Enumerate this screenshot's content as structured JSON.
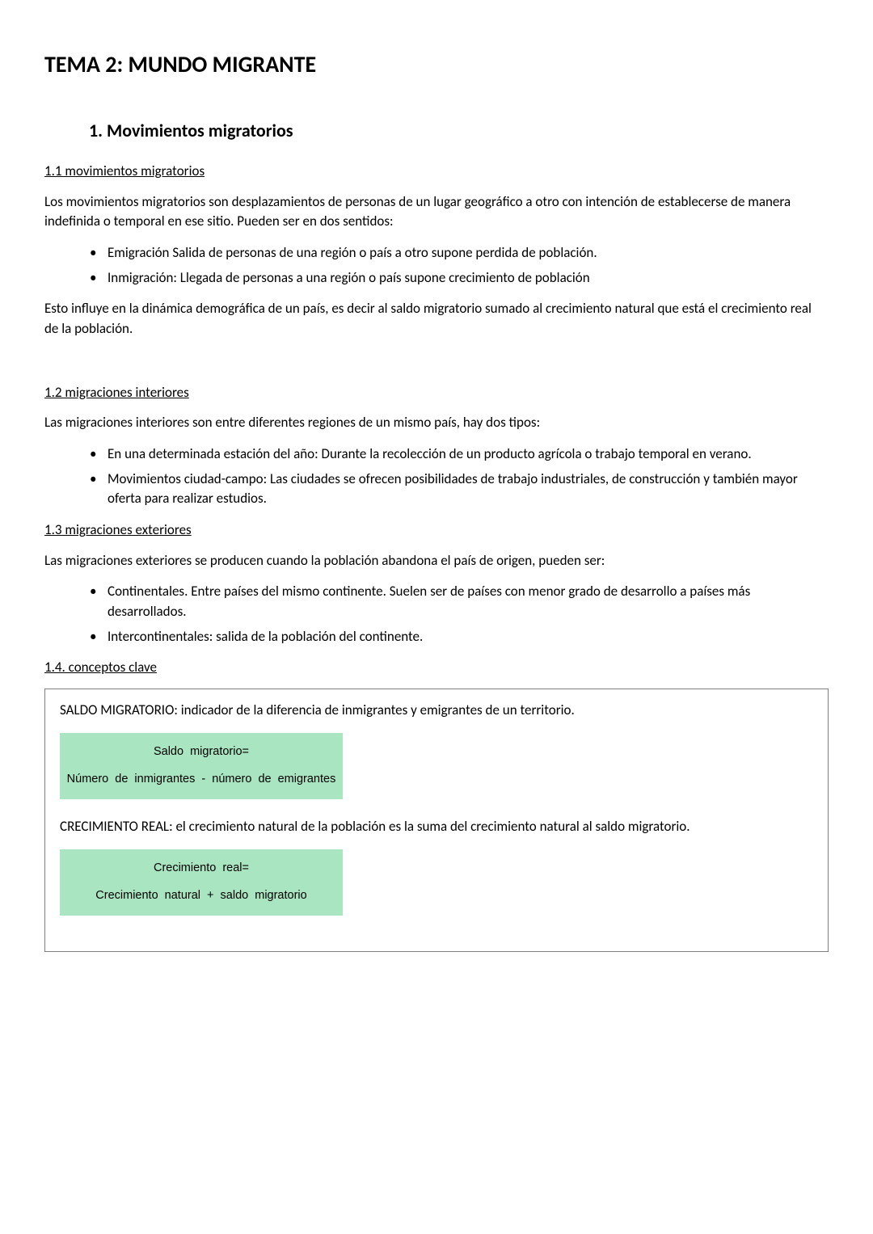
{
  "title": "TEMA 2: MUNDO MIGRANTE",
  "section1": {
    "heading": "1.  Movimientos migratorios",
    "sub11": {
      "title": "1.1 movimientos migratorios",
      "intro": "Los movimientos migratorios son desplazamientos de personas de un lugar geográfico a otro con intención de establecerse de manera indefinida o temporal en ese sitio. Pueden ser en dos sentidos:",
      "bullets": [
        "Emigración Salida de personas de una región o país a otro supone perdida de población.",
        "Inmigración: Llegada de personas a una región o país supone crecimiento de población"
      ],
      "closing": "Esto influye en la dinámica demográfica de un país, es decir al saldo migratorio sumado al crecimiento natural que está el crecimiento real de la población."
    },
    "sub12": {
      "title": "1.2 migraciones interiores",
      "intro": "Las migraciones interiores son entre diferentes regiones de un mismo país, hay dos tipos:",
      "bullets": [
        "En una determinada estación del año: Durante la recolección de un producto agrícola o trabajo temporal en verano.",
        "Movimientos ciudad-campo: Las ciudades se ofrecen posibilidades de trabajo industriales, de construcción y también mayor oferta para realizar estudios."
      ]
    },
    "sub13": {
      "title": "1.3 migraciones exteriores",
      "intro": "Las migraciones exteriores se producen cuando la población abandona el país de origen, pueden ser:",
      "bullets": [
        "Continentales. Entre países del mismo continente. Suelen ser de países con menor grado de desarrollo a países más desarrollados.",
        "Intercontinentales: salida de la población del continente."
      ]
    },
    "sub14": {
      "title": "1.4. conceptos clave",
      "concept1_def": "SALDO MIGRATORIO: indicador de la diferencia de inmigrantes y emigrantes de un territorio.",
      "formula1_title": "Saldo  migratorio=",
      "formula1_body": "Número  de  inmigrantes  -  número  de  emigrantes",
      "concept2_def": "CRECIMIENTO REAL: el crecimiento natural de la población es la suma del crecimiento natural al saldo migratorio.",
      "formula2_title": "Crecimiento  real=",
      "formula2_body": "Crecimiento  natural  +  saldo  migratorio"
    }
  },
  "colors": {
    "text": "#000000",
    "background": "#ffffff",
    "formula_bg": "#a9e5c0",
    "box_border": "#7f7f7f"
  }
}
